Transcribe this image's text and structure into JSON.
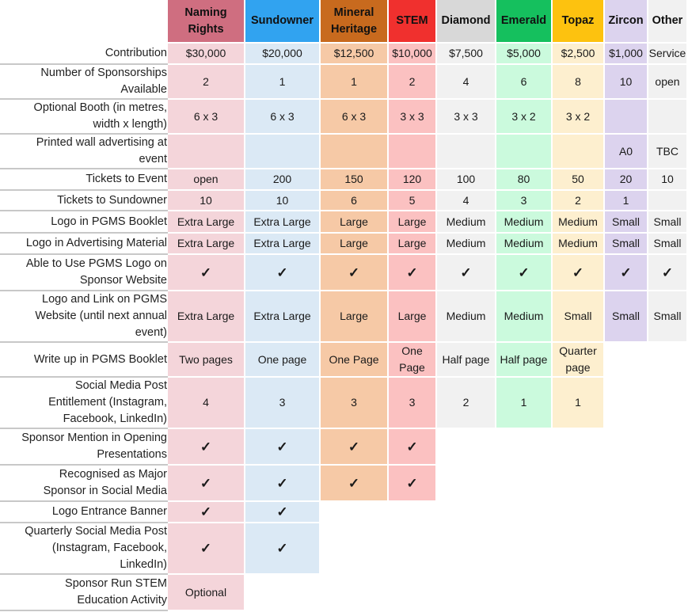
{
  "tiers": [
    {
      "name": "Naming Rights",
      "header_color": "#cf6e80",
      "cell_color": "#f4d5da"
    },
    {
      "name": "Sundowner",
      "header_color": "#31a3f0",
      "cell_color": "#dbe9f5"
    },
    {
      "name": "Mineral Heritage",
      "header_color": "#c86a1e",
      "cell_color": "#f6c9a6"
    },
    {
      "name": "STEM",
      "header_color": "#f0302e",
      "cell_color": "#fbc1c1"
    },
    {
      "name": "Diamond",
      "header_color": "#d8d8d8",
      "cell_color": "#f1f1f1"
    },
    {
      "name": "Emerald",
      "header_color": "#15c05e",
      "cell_color": "#cbfadd"
    },
    {
      "name": "Topaz",
      "header_color": "#fdc20f",
      "cell_color": "#fdefcf"
    },
    {
      "name": "Zircon",
      "header_color": "#dcd3ee",
      "cell_color": "#dcd3ee"
    },
    {
      "name": "Other",
      "header_color": "#f1f1f1",
      "cell_color": "#f1f1f1"
    }
  ],
  "check_symbol": "✓",
  "rows": [
    {
      "label": "Contribution",
      "values": [
        "$30,000",
        "$20,000",
        "$12,500",
        "$10,000",
        "$7,500",
        "$5,000",
        "$2,500",
        "$1,000",
        "Service"
      ]
    },
    {
      "label": "Number of Sponsorships Available",
      "values": [
        "2",
        "1",
        "1",
        "2",
        "4",
        "6",
        "8",
        "10",
        "open"
      ]
    },
    {
      "label": "Optional Booth (in metres, width x length)",
      "values": [
        "6 x 3",
        "6 x 3",
        "6 x 3",
        "3 x 3",
        "3 x 3",
        "3 x 2",
        "3 x 2",
        "",
        ""
      ]
    },
    {
      "label": "Printed wall advertising at event",
      "values": [
        "",
        "",
        "",
        "",
        "",
        "",
        "",
        "A0",
        "TBC"
      ]
    },
    {
      "label": "Tickets to Event",
      "values": [
        "open",
        "200",
        "150",
        "120",
        "100",
        "80",
        "50",
        "20",
        "10"
      ]
    },
    {
      "label": "Tickets to Sundowner",
      "values": [
        "10",
        "10",
        "6",
        "5",
        "4",
        "3",
        "2",
        "1",
        ""
      ]
    },
    {
      "label": "Logo in PGMS Booklet",
      "values": [
        "Extra Large",
        "Extra Large",
        "Large",
        "Large",
        "Medium",
        "Medium",
        "Medium",
        "Small",
        "Small"
      ]
    },
    {
      "label": "Logo in Advertising Material",
      "values": [
        "Extra Large",
        "Extra Large",
        "Large",
        "Large",
        "Medium",
        "Medium",
        "Medium",
        "Small",
        "Small"
      ]
    },
    {
      "label": "Able to Use PGMS Logo on Sponsor Website",
      "values": [
        "✓",
        "✓",
        "✓",
        "✓",
        "✓",
        "✓",
        "✓",
        "✓",
        "✓"
      ]
    },
    {
      "label": "Logo and Link on PGMS Website (until next annual event)",
      "values": [
        "Extra Large",
        "Extra Large",
        "Large",
        "Large",
        "Medium",
        "Medium",
        "Small",
        "Small",
        "Small"
      ]
    },
    {
      "label": "Write up in PGMS Booklet",
      "values": [
        "Two pages",
        "One page",
        "One Page",
        "One Page",
        "Half page",
        "Half page",
        "Quarter page"
      ]
    },
    {
      "label": "Social Media Post Entitlement (Instagram, Facebook, LinkedIn)",
      "values": [
        "4",
        "3",
        "3",
        "3",
        "2",
        "1",
        "1"
      ]
    },
    {
      "label": "Sponsor Mention in Opening Presentations",
      "values": [
        "✓",
        "✓",
        "✓",
        "✓"
      ]
    },
    {
      "label": "Recognised as Major Sponsor in Social Media",
      "values": [
        "✓",
        "✓",
        "✓",
        "✓"
      ]
    },
    {
      "label": "Logo Entrance Banner",
      "values": [
        "✓",
        "✓"
      ]
    },
    {
      "label": "Quarterly Social Media Post (Instagram, Facebook, LinkedIn)",
      "values": [
        "✓",
        "✓"
      ]
    },
    {
      "label": "Sponsor Run STEM Education Activity",
      "values": [
        "Optional"
      ]
    }
  ]
}
